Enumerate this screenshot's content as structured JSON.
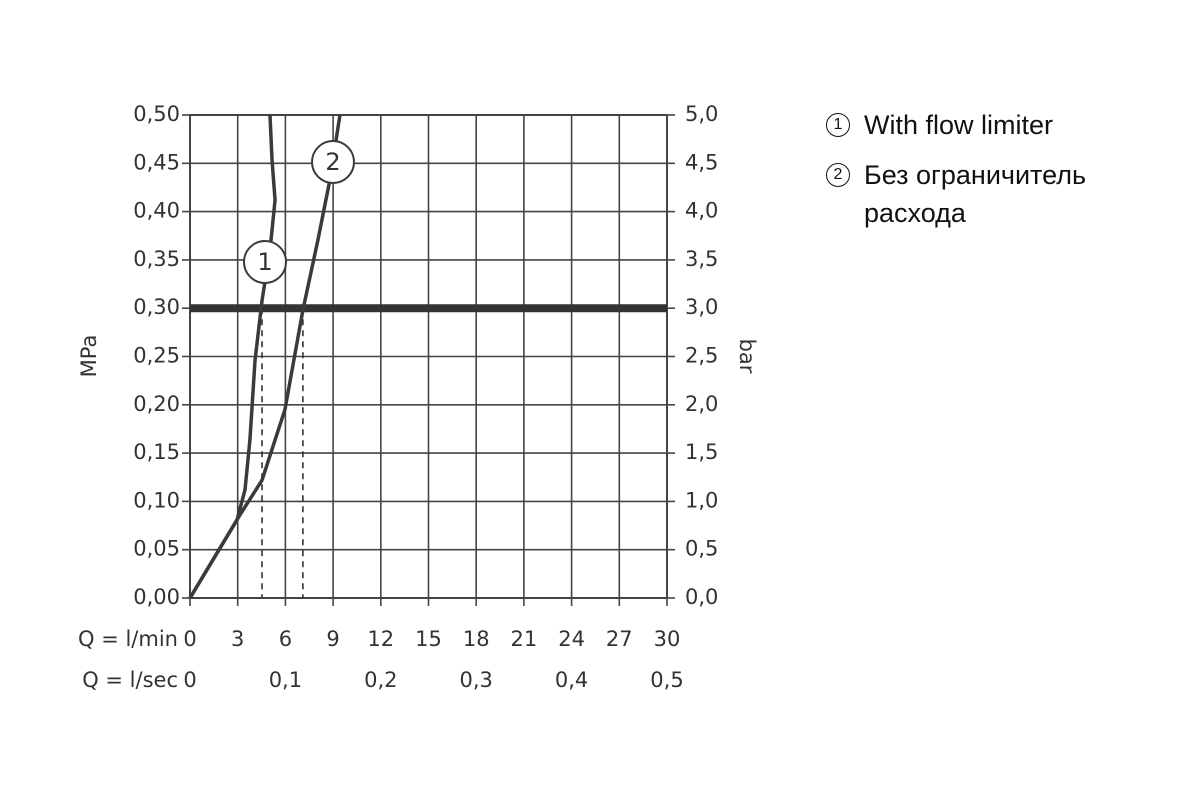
{
  "chart_data": {
    "type": "line",
    "ylabel": "MPa",
    "y2label": "bar",
    "xlabel": "Q = l/min",
    "x2label": "Q = l/sec",
    "xlim": [
      0,
      30
    ],
    "xticks": [
      0,
      3,
      6,
      9,
      12,
      15,
      18,
      21,
      24,
      27,
      30
    ],
    "x2lim": [
      0,
      0.5
    ],
    "x2ticks": [
      0,
      {
        "value": 0.1,
        "label": "0,1"
      },
      {
        "value": 0.2,
        "label": "0,2"
      },
      {
        "value": 0.3,
        "label": "0,3"
      },
      {
        "value": 0.4,
        "label": "0,4"
      },
      {
        "value": 0.5,
        "label": "0,5"
      }
    ],
    "ylim": [
      0,
      0.5
    ],
    "yticks": [
      {
        "value": 0,
        "label": "0,00"
      },
      {
        "value": 0.05,
        "label": "0,05"
      },
      {
        "value": 0.1,
        "label": "0,10"
      },
      {
        "value": 0.15,
        "label": "0,15"
      },
      {
        "value": 0.2,
        "label": "0,20"
      },
      {
        "value": 0.25,
        "label": "0,25"
      },
      {
        "value": 0.3,
        "label": "0,30"
      },
      {
        "value": 0.35,
        "label": "0,35"
      },
      {
        "value": 0.4,
        "label": "0,40"
      },
      {
        "value": 0.45,
        "label": "0,45"
      },
      {
        "value": 0.5,
        "label": "0,50"
      }
    ],
    "y2lim": [
      0,
      5
    ],
    "y2ticks": [
      {
        "value": 0,
        "label": "0,0"
      },
      {
        "value": 0.5,
        "label": "0,5"
      },
      {
        "value": 1,
        "label": "1,0"
      },
      {
        "value": 1.5,
        "label": "1,5"
      },
      {
        "value": 2,
        "label": "2,0"
      },
      {
        "value": 2.5,
        "label": "2,5"
      },
      {
        "value": 3,
        "label": "3,0"
      },
      {
        "value": 3.5,
        "label": "3,5"
      },
      {
        "value": 4,
        "label": "4,0"
      },
      {
        "value": 4.5,
        "label": "4,5"
      },
      {
        "value": 5,
        "label": "5,0"
      }
    ],
    "grid": true,
    "reference_line": 0.3,
    "flow_markers": [
      4.53,
      7.1
    ],
    "series": [
      {
        "name": "With flow limiter",
        "marker_label": "1",
        "color": "#3a3a3a",
        "x": [
          0,
          2.96,
          3.46,
          3.77,
          4.09,
          4.53,
          5.03,
          5.35,
          5.16,
          5.03
        ],
        "values": [
          0,
          0.081,
          0.112,
          0.164,
          0.246,
          0.308,
          0.36,
          0.412,
          0.453,
          0.5
        ]
      },
      {
        "name": "Без ограничитель расхода",
        "marker_label": "2",
        "color": "#3a3a3a",
        "x": [
          0,
          3.14,
          4.53,
          5.97,
          7.1,
          8.05,
          8.8,
          9.43
        ],
        "values": [
          0,
          0.086,
          0.122,
          0.195,
          0.298,
          0.371,
          0.433,
          0.5
        ]
      }
    ]
  }
}
